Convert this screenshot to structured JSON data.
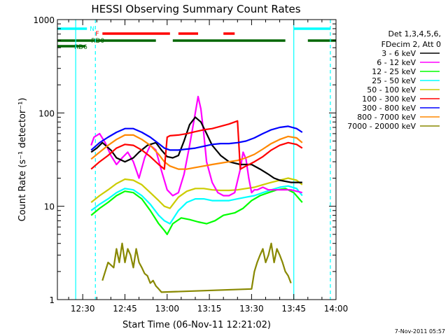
{
  "chart_data": {
    "type": "line",
    "title": "HESSI Observing Summary Count Rates",
    "xlabel": "Start Time (06-Nov-11 12:21:02)",
    "ylabel": "Count Rate (s⁻¹ detector⁻¹)",
    "x_unit": "minutes after 12:00 UT",
    "xlim": [
      21,
      120
    ],
    "ylim": [
      1,
      1000
    ],
    "y_scale": "log",
    "x_ticks": [
      {
        "value": 30,
        "label": "12:30"
      },
      {
        "value": 45,
        "label": "12:45"
      },
      {
        "value": 60,
        "label": "13:00"
      },
      {
        "value": 75,
        "label": "13:15"
      },
      {
        "value": 90,
        "label": "13:30"
      },
      {
        "value": 105,
        "label": "13:45"
      },
      {
        "value": 120,
        "label": "14:00"
      }
    ],
    "y_ticks": [
      {
        "value": 1,
        "label": "1"
      },
      {
        "value": 10,
        "label": "10"
      },
      {
        "value": 100,
        "label": "100"
      },
      {
        "value": 1000,
        "label": "1000"
      }
    ],
    "legend_position": "right",
    "legend_header": [
      "Det 1,3,4,5,6,",
      "FDecim 2, Att 0"
    ],
    "series": [
      {
        "name": "3 - 6 keV",
        "color": "#000000",
        "x": [
          33,
          35,
          37,
          40,
          42,
          45,
          48,
          50,
          53,
          56,
          58,
          60,
          62,
          64,
          66,
          68,
          70,
          72,
          74,
          76,
          79,
          82,
          86,
          90,
          93,
          96,
          98,
          100,
          104,
          108
        ],
        "y": [
          38,
          42,
          48,
          40,
          33,
          30,
          33,
          38,
          45,
          48,
          40,
          34,
          33,
          35,
          50,
          75,
          90,
          80,
          60,
          45,
          35,
          30,
          28,
          28,
          25,
          22,
          20,
          19,
          18,
          18
        ]
      },
      {
        "name": "6 - 12 keV",
        "color": "#ff00ff",
        "x": [
          33,
          34,
          36,
          38,
          40,
          42,
          44,
          46,
          48,
          50,
          52,
          54,
          56,
          58,
          60,
          62,
          64,
          66,
          68,
          70,
          71,
          72,
          73,
          74,
          76,
          78,
          80,
          82,
          84,
          86,
          87,
          88,
          89,
          90,
          91,
          92,
          94,
          96,
          100,
          104,
          108
        ],
        "y": [
          45,
          55,
          60,
          48,
          35,
          28,
          33,
          38,
          30,
          20,
          33,
          45,
          40,
          24,
          15,
          13,
          14,
          22,
          45,
          100,
          150,
          110,
          60,
          30,
          18,
          14,
          13,
          13,
          14,
          25,
          38,
          32,
          20,
          14,
          15,
          15,
          16,
          15,
          15,
          15,
          14
        ]
      },
      {
        "name": "12 - 25 keV",
        "color": "#00ff00",
        "x": [
          33,
          36,
          39,
          42,
          45,
          48,
          51,
          54,
          57,
          59,
          60,
          62,
          65,
          68,
          71,
          74,
          77,
          80,
          84,
          87,
          90,
          93,
          96,
          99,
          102,
          105,
          108
        ],
        "y": [
          8,
          9.5,
          11,
          13,
          14.5,
          14,
          12,
          9,
          6.5,
          5.5,
          5,
          6.5,
          7.5,
          7.2,
          6.8,
          6.5,
          7,
          8,
          8.5,
          9.5,
          11.5,
          13,
          14,
          15,
          15.5,
          14,
          11
        ]
      },
      {
        "name": "25 - 50 keV",
        "color": "#00ffff",
        "x": [
          33,
          36,
          39,
          42,
          45,
          48,
          51,
          54,
          57,
          59,
          61,
          64,
          67,
          70,
          73,
          76,
          79,
          82,
          85,
          88,
          91,
          94,
          97,
          100,
          103,
          106,
          108
        ],
        "y": [
          9,
          10.5,
          12,
          14,
          15.5,
          15,
          13,
          10.5,
          8,
          7,
          6.5,
          9,
          11,
          12,
          12,
          11.5,
          11.5,
          11.5,
          12,
          12.5,
          13,
          14,
          15,
          16,
          16.5,
          15.5,
          13
        ]
      },
      {
        "name": "50 - 100 keV",
        "color": "#cccc00",
        "x": [
          33,
          36,
          39,
          42,
          45,
          48,
          51,
          54,
          57,
          59,
          61,
          64,
          67,
          70,
          73,
          76,
          79,
          82,
          85,
          88,
          91,
          94,
          97,
          100,
          103,
          106,
          108
        ],
        "y": [
          11,
          13,
          15,
          17.5,
          19.5,
          19,
          17,
          14,
          11.5,
          10,
          9.5,
          12.5,
          14.5,
          15.5,
          15.5,
          15,
          14.8,
          14.8,
          15,
          15.5,
          16,
          17,
          18,
          19,
          20,
          19,
          17
        ]
      },
      {
        "name": "100 - 300 keV",
        "color": "#ff0000",
        "x": [
          33,
          36,
          39,
          42,
          45,
          48,
          51,
          54,
          57,
          59,
          60,
          61,
          64,
          67,
          70,
          73,
          76,
          79,
          82,
          85,
          86,
          88,
          91,
          94,
          97,
          100,
          103,
          106,
          108
        ],
        "y": [
          25,
          30,
          35,
          42,
          46,
          45,
          40,
          34,
          28,
          25,
          55,
          57,
          58,
          60,
          63,
          66,
          68,
          72,
          76,
          82,
          25,
          27,
          30,
          34,
          40,
          45,
          48,
          46,
          42
        ]
      },
      {
        "name": "300 - 800 keV",
        "color": "#0000ff",
        "x": [
          33,
          36,
          39,
          42,
          45,
          48,
          51,
          54,
          57,
          59,
          61,
          64,
          67,
          70,
          73,
          76,
          79,
          82,
          85,
          88,
          91,
          94,
          97,
          100,
          103,
          106,
          108
        ],
        "y": [
          40,
          48,
          55,
          62,
          68,
          68,
          62,
          55,
          47,
          42,
          40,
          40,
          41,
          42,
          44,
          46,
          47,
          47,
          48,
          50,
          54,
          60,
          66,
          70,
          72,
          68,
          62
        ]
      },
      {
        "name": "800 - 7000 keV",
        "color": "#ff8800",
        "x": [
          33,
          36,
          39,
          42,
          45,
          48,
          51,
          54,
          57,
          59,
          61,
          64,
          67,
          70,
          73,
          76,
          79,
          82,
          85,
          88,
          91,
          94,
          97,
          100,
          103,
          106,
          108
        ],
        "y": [
          32,
          38,
          45,
          52,
          58,
          58,
          52,
          45,
          36,
          30,
          27,
          25,
          25,
          26,
          27,
          28,
          29,
          30,
          31,
          33,
          36,
          41,
          47,
          52,
          56,
          54,
          48
        ]
      },
      {
        "name": "7000 - 20000 keV",
        "color": "#888800",
        "x": [
          37,
          39,
          41,
          42,
          43,
          44,
          45,
          46,
          47,
          48,
          49,
          50,
          51,
          52,
          53,
          54,
          55,
          56,
          57,
          58,
          90,
          91,
          92,
          93,
          94,
          95,
          96,
          97,
          98,
          99,
          100,
          101,
          102,
          103,
          104
        ],
        "y": [
          1.6,
          2.5,
          2.2,
          3.5,
          2.5,
          4,
          2.5,
          3.5,
          3,
          2.2,
          3.5,
          2.5,
          2.2,
          1.9,
          1.8,
          1.5,
          1.6,
          1.4,
          1.3,
          1.2,
          1.3,
          2,
          2.5,
          3,
          3.5,
          2.5,
          3,
          4,
          2.5,
          3.5,
          3,
          2.5,
          2,
          1.8,
          1.5
        ]
      }
    ],
    "flags": [
      {
        "name": "N",
        "color": "#00ffff",
        "segments": [
          [
            21,
            31.5
          ],
          [
            105,
            118
          ]
        ]
      },
      {
        "name": "F",
        "color": "#ff0000",
        "segments": [
          [
            37,
            61
          ],
          [
            64,
            71
          ],
          [
            80,
            84
          ]
        ]
      },
      {
        "name": "RD0",
        "color": "#006600",
        "segments": [
          [
            21,
            56
          ],
          [
            62,
            102
          ],
          [
            110,
            120
          ]
        ]
      },
      {
        "name": "RD6",
        "color": "#006600",
        "segments": [
          [
            21,
            31
          ]
        ]
      }
    ],
    "vertical_markers": [
      {
        "x": 27.5,
        "style": "solid",
        "color": "#00ffff"
      },
      {
        "x": 34.5,
        "style": "dashed",
        "color": "#00ffff"
      },
      {
        "x": 105,
        "style": "solid",
        "color": "#00ffff"
      },
      {
        "x": 118,
        "style": "dashed",
        "color": "#00ffff"
      }
    ]
  },
  "footer": {
    "timestamp": "7-Nov-2011 05:57"
  }
}
